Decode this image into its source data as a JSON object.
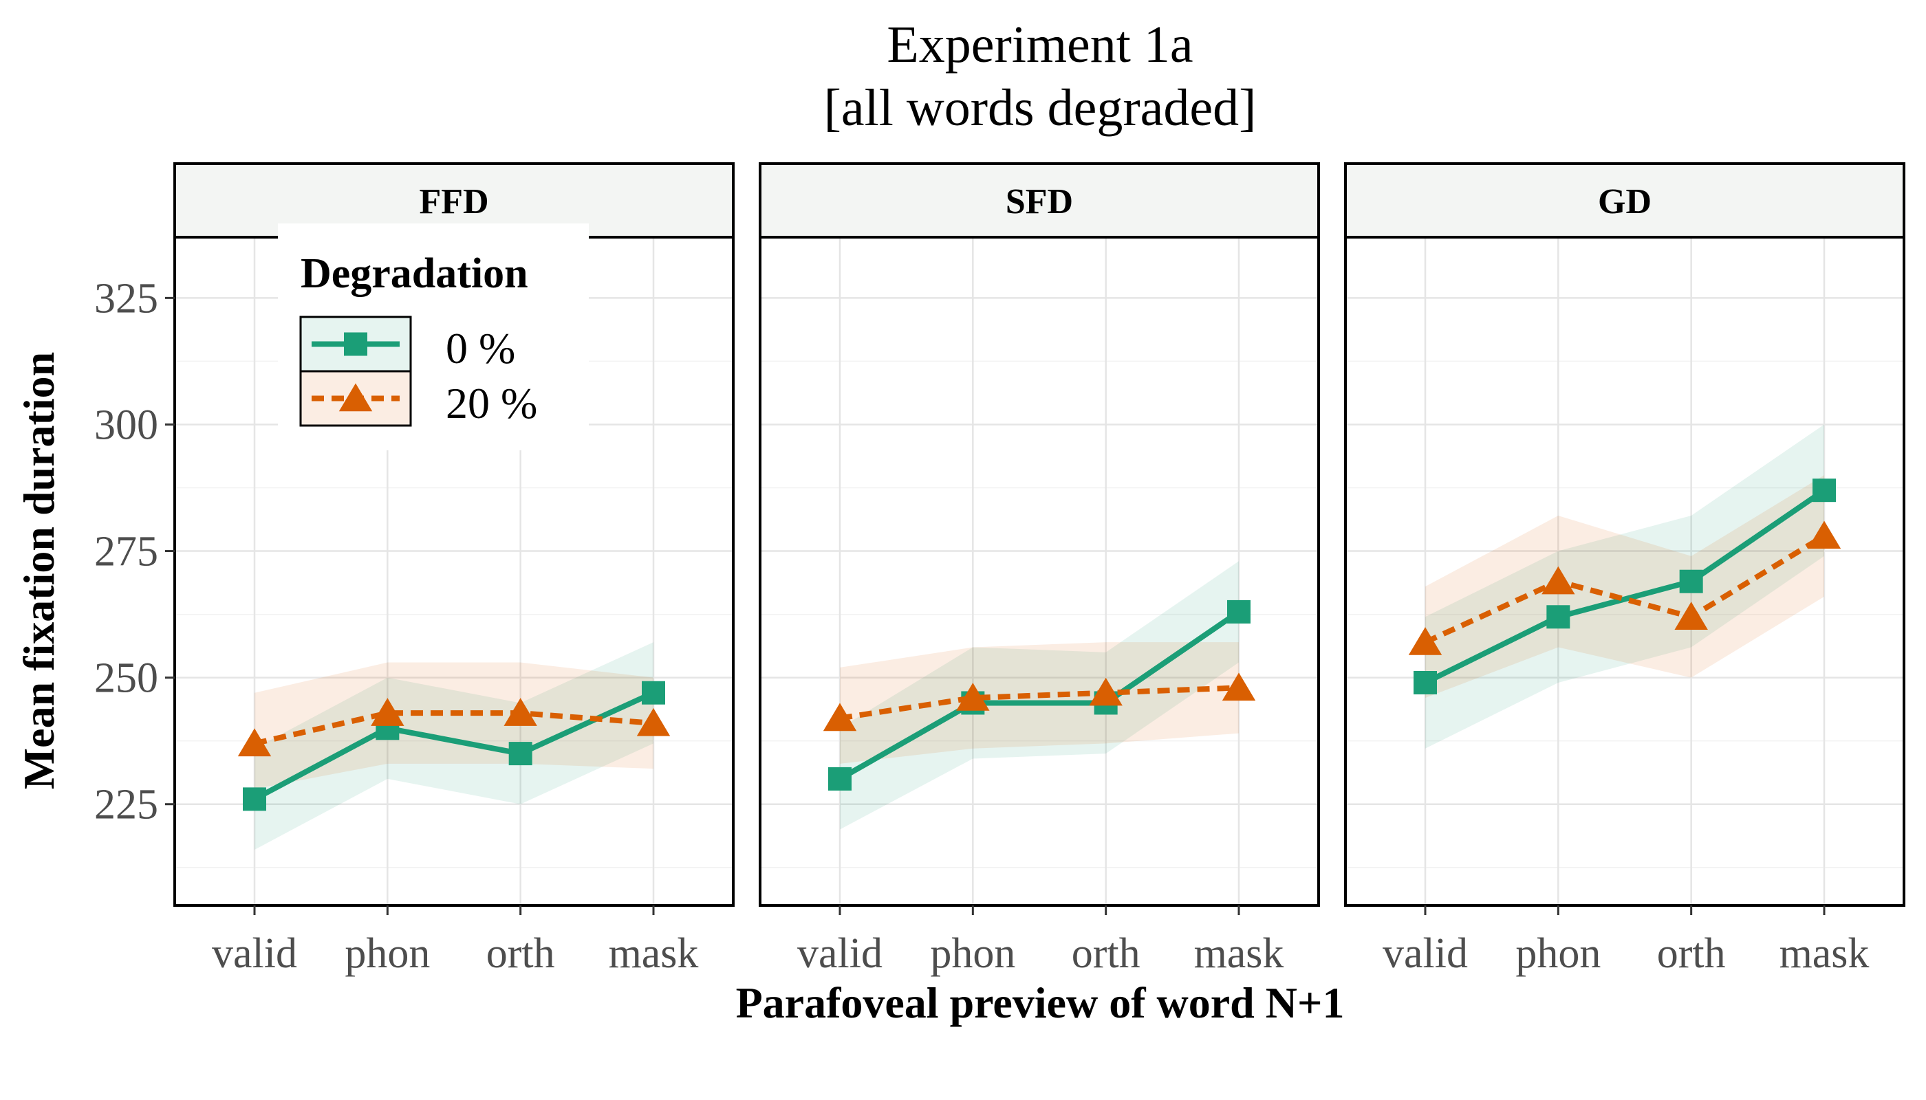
{
  "colors": {
    "series_0": "#1b9e77",
    "series_20": "#d95f02"
  },
  "chart_data": {
    "type": "line",
    "title": "Experiment 1a",
    "subtitle": "[all words degraded]",
    "xlabel": "Parafoveal preview of word N+1",
    "ylabel": "Mean fixation duration",
    "categories": [
      "valid",
      "phon",
      "orth",
      "mask"
    ],
    "ylim": [
      205,
      337
    ],
    "yticks": [
      225,
      250,
      275,
      300,
      325
    ],
    "grid": true,
    "legend": {
      "title": "Degradation",
      "position": "inside-top-left",
      "entries": [
        "0 %",
        "20 %"
      ]
    },
    "panels": [
      {
        "label": "FFD",
        "series": [
          {
            "name": "0 %",
            "values": [
              226,
              240,
              235,
              247
            ],
            "lower": [
              216,
              230,
              225,
              237
            ],
            "upper": [
              236,
              250,
              245,
              257
            ]
          },
          {
            "name": "20 %",
            "values": [
              237,
              243,
              243,
              241
            ],
            "lower": [
              228,
              233,
              233,
              232
            ],
            "upper": [
              247,
              253,
              253,
              250
            ]
          }
        ]
      },
      {
        "label": "SFD",
        "series": [
          {
            "name": "0 %",
            "values": [
              230,
              245,
              245,
              263
            ],
            "lower": [
              220,
              234,
              235,
              253
            ],
            "upper": [
              240,
              256,
              255,
              273
            ]
          },
          {
            "name": "20 %",
            "values": [
              242,
              246,
              247,
              248
            ],
            "lower": [
              233,
              236,
              237,
              239
            ],
            "upper": [
              252,
              256,
              257,
              257
            ]
          }
        ]
      },
      {
        "label": "GD",
        "series": [
          {
            "name": "0 %",
            "values": [
              249,
              262,
              269,
              287
            ],
            "lower": [
              236,
              249,
              256,
              274
            ],
            "upper": [
              262,
              275,
              282,
              300
            ]
          },
          {
            "name": "20 %",
            "values": [
              257,
              269,
              262,
              278
            ],
            "lower": [
              246,
              256,
              250,
              266
            ],
            "upper": [
              268,
              282,
              274,
              290
            ]
          }
        ]
      }
    ]
  }
}
